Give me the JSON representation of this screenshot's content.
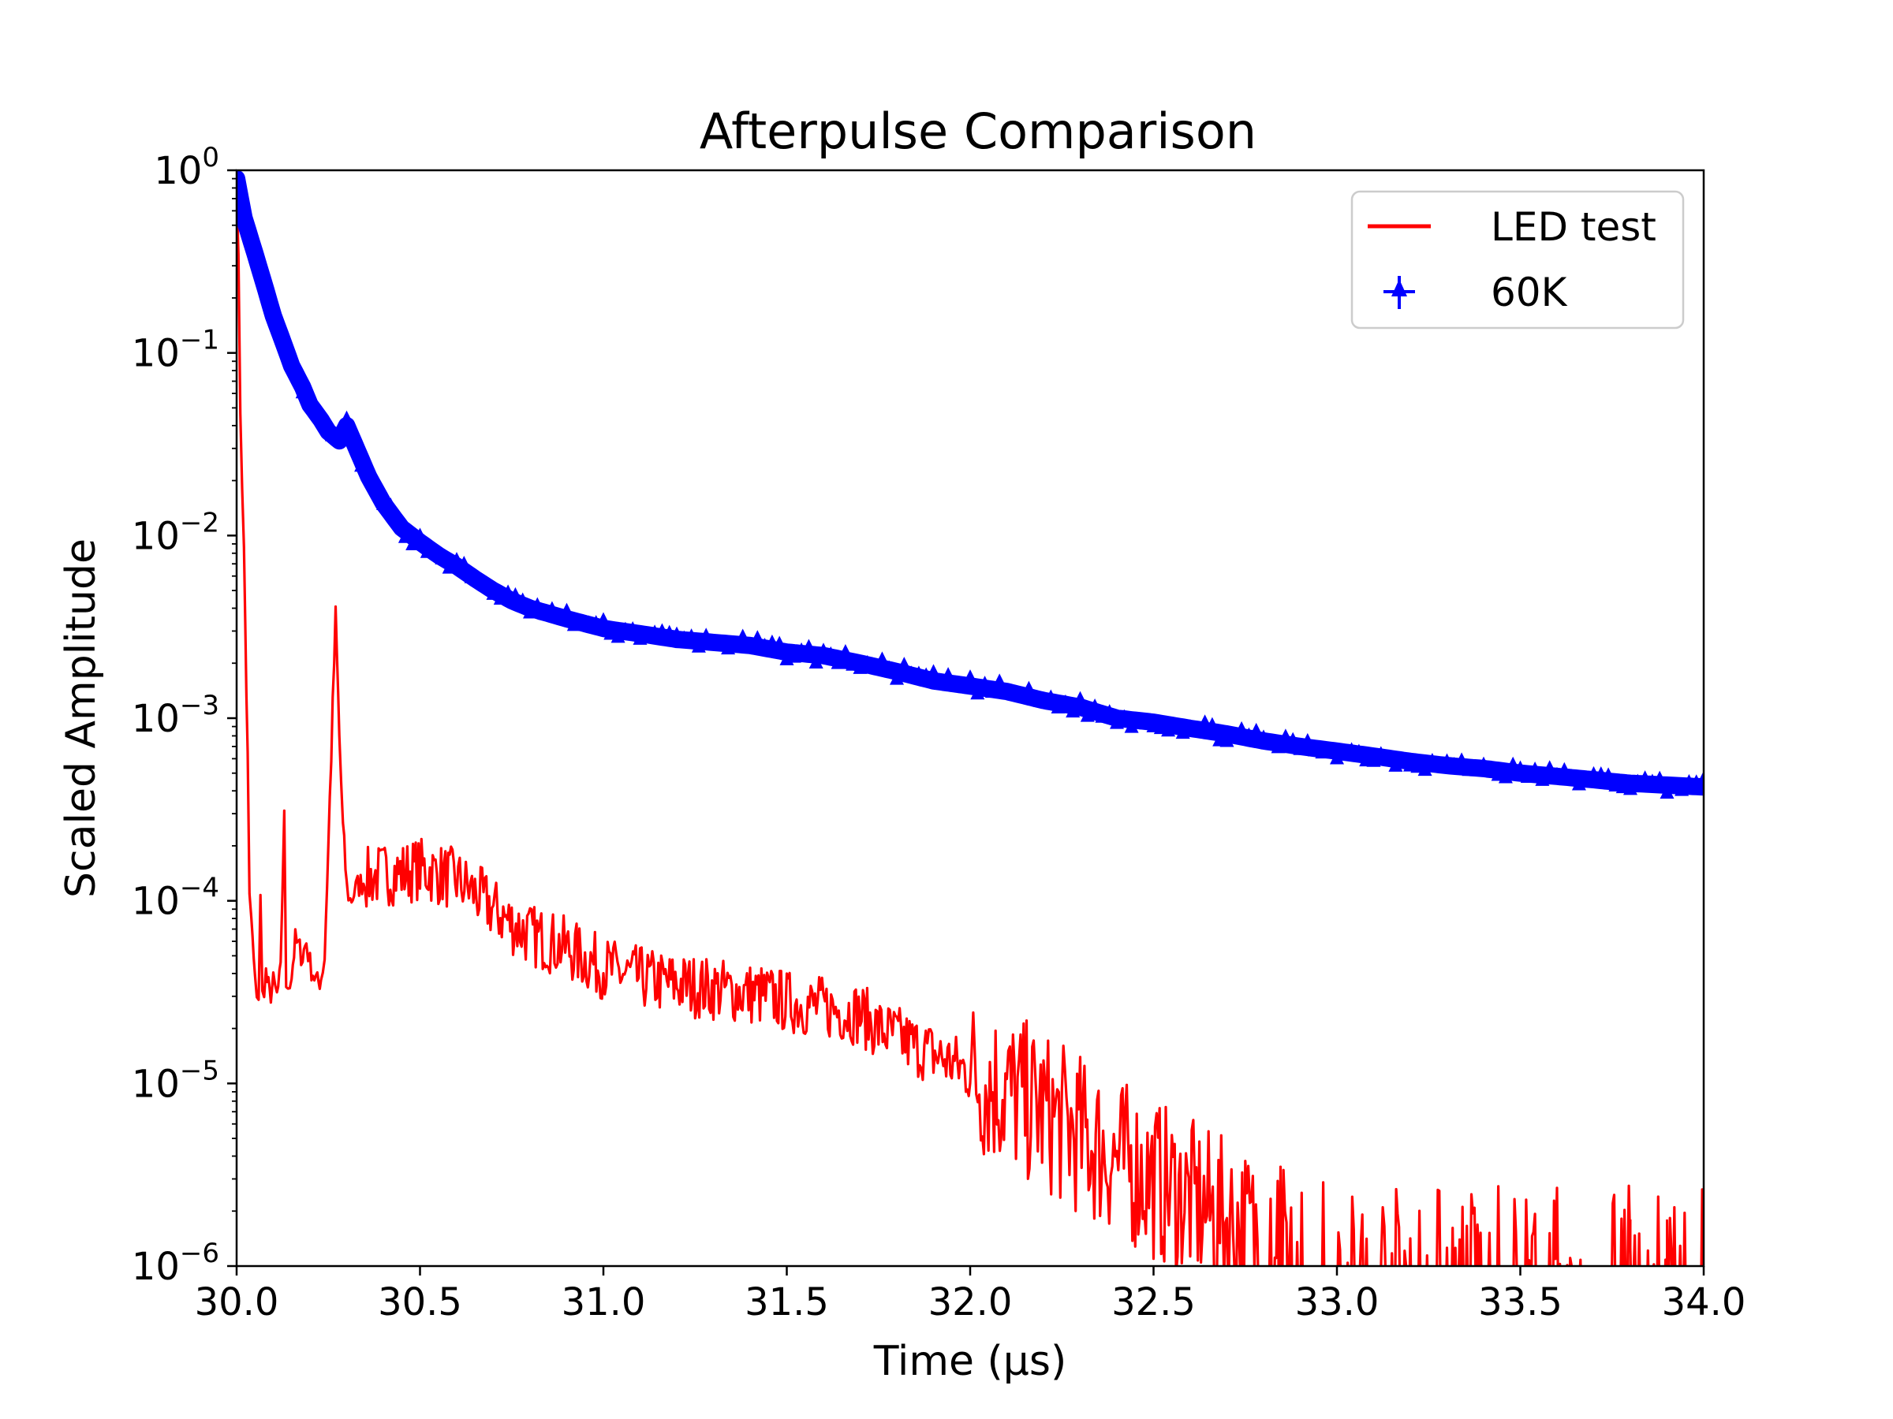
{
  "chart_data": {
    "type": "line",
    "title": "Afterpulse Comparison",
    "xlabel": "Time (μs)",
    "ylabel": "Scaled Amplitude",
    "xlim": [
      30.0,
      34.0
    ],
    "ylim": [
      1e-06,
      1
    ],
    "yscale": "log",
    "x_ticks": [
      30.0,
      30.5,
      31.0,
      31.5,
      32.0,
      32.5,
      33.0,
      33.5,
      34.0
    ],
    "x_tick_labels": [
      "30.0",
      "30.5",
      "31.0",
      "31.5",
      "32.0",
      "32.5",
      "33.0",
      "33.5",
      "34.0"
    ],
    "y_ticks": [
      {
        "value": 1,
        "base": "10",
        "exp": "0"
      },
      {
        "value": 0.1,
        "base": "10",
        "exp": "−1"
      },
      {
        "value": 0.01,
        "base": "10",
        "exp": "−2"
      },
      {
        "value": 0.001,
        "base": "10",
        "exp": "−3"
      },
      {
        "value": 0.0001,
        "base": "10",
        "exp": "−4"
      },
      {
        "value": 1e-05,
        "base": "10",
        "exp": "−5"
      },
      {
        "value": 1e-06,
        "base": "10",
        "exp": "−6"
      }
    ],
    "legend_position": "top-right",
    "series": [
      {
        "name": "LED test",
        "color": "#ff0000",
        "style": "line",
        "x": [
          30.0,
          30.005,
          30.01,
          30.015,
          30.02,
          30.03,
          30.035,
          30.04,
          30.05,
          30.06,
          30.065,
          30.07,
          30.08,
          30.09,
          30.1,
          30.11,
          30.12,
          30.13,
          30.135,
          30.14,
          30.15,
          30.16,
          30.18,
          30.19,
          30.2,
          30.22,
          30.23,
          30.24,
          30.25,
          30.27,
          30.28,
          30.29,
          30.3,
          30.31,
          30.32,
          30.33,
          30.35,
          30.37,
          30.4,
          30.45,
          30.5,
          30.55,
          30.6,
          30.65,
          30.7,
          30.75,
          30.8,
          30.85,
          30.9,
          30.95,
          31.0,
          31.05,
          31.1,
          31.15,
          31.2,
          31.25,
          31.3,
          31.35,
          31.4,
          31.45,
          31.5,
          31.55,
          31.6,
          31.65,
          31.7,
          31.75,
          31.8,
          31.85,
          31.9,
          31.95,
          32.0,
          32.05,
          32.1,
          32.15,
          32.2,
          32.25,
          32.3,
          32.35,
          32.4,
          32.45,
          32.5,
          32.55,
          32.6,
          32.65,
          32.7,
          32.75,
          32.8,
          32.85,
          32.9,
          32.95,
          33.0,
          33.05,
          33.1,
          33.15,
          33.2,
          33.25,
          33.3,
          33.35,
          33.4,
          33.5,
          33.6,
          33.7,
          33.8,
          33.9,
          34.0
        ],
        "y": [
          0.9,
          0.3,
          0.05,
          0.02,
          0.008,
          0.0006,
          0.0001,
          8e-05,
          3.5e-05,
          3e-05,
          0.0001,
          3e-05,
          4e-05,
          3e-05,
          3.5e-05,
          3e-05,
          4e-05,
          0.00033,
          3e-05,
          3.5e-05,
          4e-05,
          6e-05,
          5e-05,
          6e-05,
          4.5e-05,
          3.5e-05,
          3.8e-05,
          5e-05,
          0.0002,
          0.0036,
          0.0008,
          0.00025,
          0.00012,
          0.0001,
          0.00011,
          0.00012,
          0.00013,
          0.000135,
          0.00014,
          0.000142,
          0.00015,
          0.00014,
          0.00013,
          0.00011,
          9e-05,
          7.5e-05,
          6.5e-05,
          6e-05,
          5.5e-05,
          4.8e-05,
          4.3e-05,
          4e-05,
          3.8e-05,
          3.6e-05,
          3.5e-05,
          3.4e-05,
          3.3e-05,
          3.2e-05,
          3.1e-05,
          3e-05,
          2.8e-05,
          2.7e-05,
          2.6e-05,
          2.5e-05,
          2.4e-05,
          2e-05,
          1.8e-05,
          1.6e-05,
          1.45e-05,
          1.3e-05,
          1.15e-05,
          1e-05,
          9e-06,
          8e-06,
          7e-06,
          6e-06,
          5.2e-06,
          4.5e-06,
          3.9e-06,
          3.4e-06,
          3e-06,
          2.6e-06,
          2.3e-06,
          2e-06,
          1.8e-06,
          1.6e-06,
          1.45e-06,
          1.3e-06,
          1.2e-06,
          1.1e-06,
          1.05e-06,
          1e-06,
          1e-06,
          1e-06,
          1e-06,
          1e-06,
          1e-06,
          1e-06,
          1e-06,
          1e-06,
          1e-06,
          1e-06,
          1e-06,
          1e-06,
          1e-06
        ]
      },
      {
        "name": "60K",
        "color": "#0000ff",
        "style": "errorbar-triangle",
        "x": [
          30.0,
          30.02,
          30.05,
          30.08,
          30.1,
          30.13,
          30.15,
          30.18,
          30.2,
          30.23,
          30.25,
          30.28,
          30.3,
          30.33,
          30.36,
          30.4,
          30.45,
          30.5,
          30.55,
          30.6,
          30.65,
          30.7,
          30.75,
          30.8,
          30.9,
          31.0,
          31.1,
          31.2,
          31.3,
          31.4,
          31.5,
          31.6,
          31.7,
          31.8,
          31.9,
          32.0,
          32.1,
          32.2,
          32.3,
          32.4,
          32.5,
          32.6,
          32.7,
          32.8,
          32.9,
          33.0,
          33.1,
          33.2,
          33.3,
          33.4,
          33.5,
          33.6,
          33.7,
          33.8,
          33.9,
          34.0
        ],
        "y": [
          0.9,
          0.55,
          0.35,
          0.22,
          0.16,
          0.11,
          0.085,
          0.065,
          0.052,
          0.043,
          0.037,
          0.033,
          0.04,
          0.029,
          0.021,
          0.015,
          0.011,
          0.0092,
          0.0078,
          0.0068,
          0.0058,
          0.005,
          0.0044,
          0.004,
          0.0035,
          0.0031,
          0.0029,
          0.0027,
          0.0026,
          0.0025,
          0.0023,
          0.0022,
          0.002,
          0.0018,
          0.0016,
          0.0015,
          0.0014,
          0.00125,
          0.00115,
          0.001,
          0.00095,
          0.00088,
          0.00082,
          0.00075,
          0.0007,
          0.00066,
          0.00062,
          0.00058,
          0.00055,
          0.00053,
          0.0005,
          0.00048,
          0.00046,
          0.00044,
          0.00043,
          0.00042
        ]
      }
    ]
  }
}
